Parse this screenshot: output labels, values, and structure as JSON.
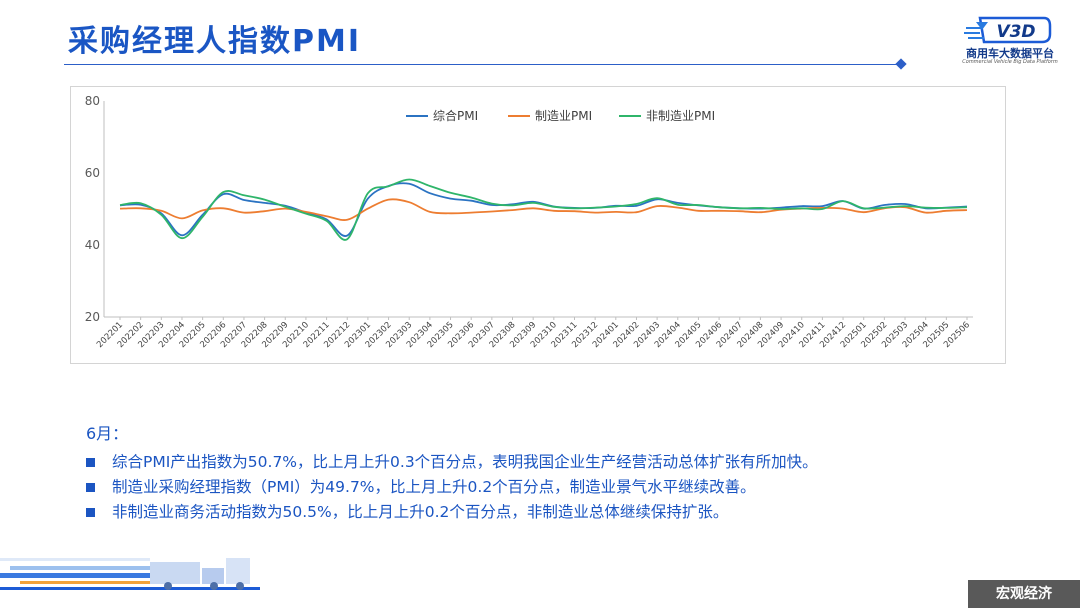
{
  "header": {
    "title": "采购经理人指数PMI",
    "logo_cn": "商用车大数据平台",
    "logo_en": "Commercial Vehicle Big Data Platform",
    "logo_mark": "V3D"
  },
  "chart_data": {
    "type": "line",
    "x": [
      "202201",
      "202202",
      "202203",
      "202204",
      "202205",
      "202206",
      "202207",
      "202208",
      "202209",
      "202210",
      "202211",
      "202212",
      "202301",
      "202302",
      "202303",
      "202304",
      "202305",
      "202306",
      "202307",
      "202308",
      "202309",
      "202310",
      "202311",
      "202312",
      "202401",
      "202402",
      "202403",
      "202404",
      "202405",
      "202406",
      "202407",
      "202408",
      "202409",
      "202410",
      "202411",
      "202412",
      "202501",
      "202502",
      "202503",
      "202504",
      "202505",
      "202506"
    ],
    "ylim": [
      20,
      80
    ],
    "yticks": [
      20,
      40,
      60,
      80
    ],
    "legend_position": "top-center",
    "grid": false,
    "series": [
      {
        "name": "综合PMI",
        "color": "#2b73c2",
        "values": [
          51.0,
          51.2,
          48.8,
          42.7,
          48.4,
          54.1,
          52.5,
          51.7,
          50.9,
          49.0,
          47.1,
          42.6,
          52.9,
          56.4,
          57.0,
          54.4,
          52.9,
          52.3,
          51.1,
          51.3,
          52.0,
          50.7,
          50.3,
          50.3,
          50.9,
          50.9,
          52.7,
          51.7,
          51.0,
          50.5,
          50.2,
          50.1,
          50.4,
          50.8,
          50.8,
          52.2,
          50.1,
          51.1,
          51.4,
          50.2,
          50.4,
          50.7
        ]
      },
      {
        "name": "制造业PMI",
        "color": "#ed7d31",
        "values": [
          50.1,
          50.2,
          49.5,
          47.4,
          49.6,
          50.2,
          49.0,
          49.4,
          50.1,
          49.2,
          48.0,
          47.0,
          50.1,
          52.6,
          51.9,
          49.2,
          48.8,
          49.0,
          49.3,
          49.7,
          50.2,
          49.5,
          49.4,
          49.0,
          49.2,
          49.1,
          50.8,
          50.4,
          49.5,
          49.5,
          49.4,
          49.1,
          49.8,
          50.1,
          50.3,
          50.1,
          49.1,
          50.2,
          50.5,
          49.0,
          49.5,
          49.7
        ]
      },
      {
        "name": "非制造业PMI",
        "color": "#2fb56a",
        "values": [
          51.1,
          51.6,
          48.4,
          41.9,
          47.8,
          54.7,
          53.8,
          52.6,
          50.6,
          48.7,
          46.7,
          41.6,
          54.4,
          56.3,
          58.2,
          56.4,
          54.5,
          53.2,
          51.5,
          51.0,
          51.7,
          50.6,
          50.2,
          50.4,
          50.7,
          51.4,
          53.0,
          51.2,
          51.1,
          50.5,
          50.2,
          50.3,
          50.0,
          50.2,
          50.0,
          52.2,
          50.2,
          50.4,
          50.8,
          50.4,
          50.3,
          50.5
        ]
      }
    ]
  },
  "notes": {
    "month_label": "6月：",
    "items": [
      "综合PMI产出指数为50.7%，比上月上升0.3个百分点，表明我国企业生产经营活动总体扩张有所加快。",
      "制造业采购经理指数（PMI）为49.7%，比上月上升0.2个百分点，制造业景气水平继续改善。",
      "非制造业商务活动指数为50.5%，比上月上升0.2个百分点，非制造业总体继续保持扩张。"
    ]
  },
  "footer": {
    "tag": "宏观经济"
  }
}
